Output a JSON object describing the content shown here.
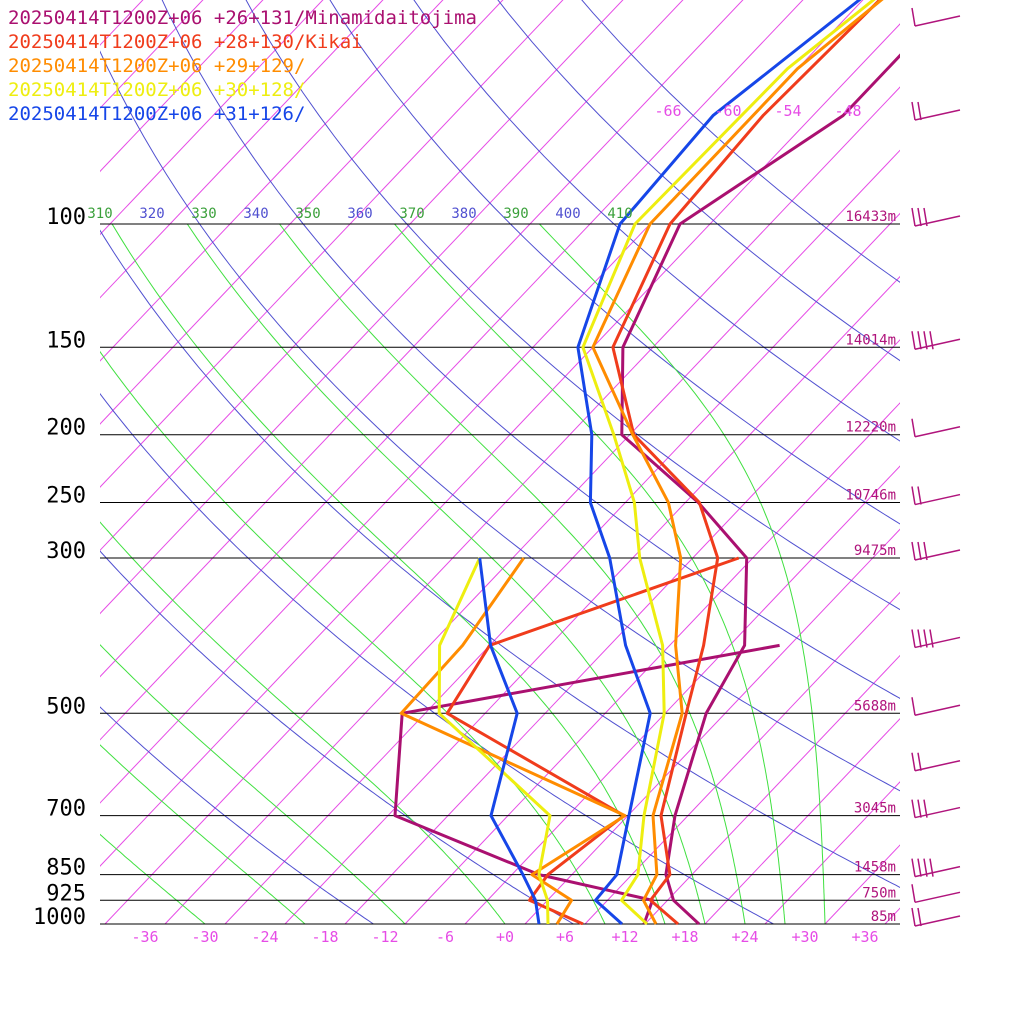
{
  "chart_data": {
    "type": "line",
    "xlabel": "",
    "ylabel": "",
    "x_ticks": [
      "-36",
      "-30",
      "-24",
      "-18",
      "-12",
      "-6",
      "+0",
      "+6",
      "+12",
      "+18",
      "+24",
      "+30",
      "+36"
    ],
    "pressure_levels": [
      {
        "p": 100,
        "label": "100",
        "height": "16433m"
      },
      {
        "p": 150,
        "label": "150",
        "height": "14014m"
      },
      {
        "p": 200,
        "label": "200",
        "height": "12220m"
      },
      {
        "p": 250,
        "label": "250",
        "height": "10746m"
      },
      {
        "p": 300,
        "label": "300",
        "height": "9475m"
      },
      {
        "p": 500,
        "label": "500",
        "height": "5688m"
      },
      {
        "p": 700,
        "label": "700",
        "height": "3045m"
      },
      {
        "p": 850,
        "label": "850",
        "height": "1458m"
      },
      {
        "p": 925,
        "label": "925",
        "height": "750m"
      },
      {
        "p": 1000,
        "label": "1000",
        "height": "85m"
      }
    ],
    "theta_labels": [
      {
        "text": "310",
        "color": "#3aa03a"
      },
      {
        "text": "320",
        "color": "#5050d0"
      },
      {
        "text": "330",
        "color": "#3aa03a"
      },
      {
        "text": "340",
        "color": "#5050d0"
      },
      {
        "text": "350",
        "color": "#3aa03a"
      },
      {
        "text": "360",
        "color": "#5050d0"
      },
      {
        "text": "370",
        "color": "#3aa03a"
      },
      {
        "text": "380",
        "color": "#5050d0"
      },
      {
        "text": "390",
        "color": "#3aa03a"
      },
      {
        "text": "400",
        "color": "#5050d0"
      },
      {
        "text": "410",
        "color": "#3aa03a"
      }
    ],
    "top_temp_labels": [
      "-66",
      "-60",
      "-54",
      "-48"
    ],
    "series": [
      {
        "name": "20250414T1200Z+06 +26+131/Minamidaitojima",
        "color": "#aa1070",
        "temperature": [
          [
            1000,
            19.4
          ],
          [
            925,
            14.6
          ],
          [
            850,
            11.4
          ],
          [
            700,
            6.7
          ],
          [
            500,
            0.1
          ],
          [
            400,
            -2.5
          ],
          [
            300,
            -10.6
          ],
          [
            250,
            -20.7
          ],
          [
            200,
            -34.8
          ],
          [
            150,
            -43
          ],
          [
            100,
            -49
          ],
          [
            70,
            -43
          ],
          [
            20,
            -43
          ]
        ],
        "dewpoint": [
          [
            1000,
            13.9
          ],
          [
            925,
            12.5
          ],
          [
            850,
            -1.3
          ],
          [
            700,
            -21.3
          ],
          [
            500,
            -30.3
          ],
          [
            400,
            1.0
          ]
        ]
      },
      {
        "name": "20250414T1200Z+06 +28+130/Kikai",
        "color": "#f03c1c",
        "temperature": [
          [
            1000,
            17.3
          ],
          [
            925,
            12.3
          ],
          [
            850,
            11.8
          ],
          [
            700,
            5.3
          ],
          [
            500,
            -1.9
          ],
          [
            400,
            -6.6
          ],
          [
            300,
            -13.5
          ],
          [
            250,
            -20.6
          ],
          [
            200,
            -33.6
          ],
          [
            150,
            -44
          ],
          [
            100,
            -50
          ],
          [
            70,
            -51
          ],
          [
            40,
            -50
          ],
          [
            20,
            -44
          ]
        ],
        "dewpoint": [
          [
            1000,
            7.8
          ],
          [
            925,
            0.2
          ],
          [
            850,
            -0.4
          ],
          [
            700,
            1.6
          ],
          [
            500,
            -25.8
          ],
          [
            400,
            -28
          ],
          [
            300,
            -11.4
          ]
        ]
      },
      {
        "name": "20250414T1200Z+06 +29+129/",
        "color": "#ff8c00",
        "temperature": [
          [
            1000,
            15.1
          ],
          [
            925,
            11.6
          ],
          [
            850,
            10.5
          ],
          [
            700,
            4.5
          ],
          [
            500,
            -2.3
          ],
          [
            400,
            -9.4
          ],
          [
            300,
            -17.2
          ],
          [
            250,
            -23.7
          ],
          [
            200,
            -33.7
          ],
          [
            150,
            -46
          ],
          [
            100,
            -52
          ],
          [
            60,
            -52
          ],
          [
            20,
            -43
          ]
        ],
        "dewpoint": [
          [
            1000,
            5.2
          ],
          [
            925,
            4.4
          ],
          [
            850,
            -2.0
          ],
          [
            700,
            1.7
          ],
          [
            500,
            -30.4
          ],
          [
            400,
            -30.7
          ],
          [
            300,
            -32.9
          ]
        ]
      },
      {
        "name": "20250414T1200Z+06 +30+128/",
        "color": "#eeee10",
        "temperature": [
          [
            1000,
            14.2
          ],
          [
            925,
            9.4
          ],
          [
            850,
            8.6
          ],
          [
            700,
            3.6
          ],
          [
            500,
            -4.1
          ],
          [
            400,
            -10.7
          ],
          [
            300,
            -21.3
          ],
          [
            250,
            -27.1
          ],
          [
            200,
            -35.6
          ],
          [
            150,
            -47
          ],
          [
            100,
            -53.5
          ],
          [
            60,
            -53
          ],
          [
            20,
            -43
          ]
        ],
        "dewpoint": [
          [
            1000,
            4.3
          ],
          [
            925,
            2.0
          ],
          [
            850,
            -1.3
          ],
          [
            700,
            -5.8
          ],
          [
            500,
            -26.6
          ],
          [
            400,
            -33.0
          ],
          [
            300,
            -37.3
          ]
        ]
      },
      {
        "name": "20250414T1200Z+06 +31+126/",
        "color": "#1646e8",
        "temperature": [
          [
            1000,
            11.7
          ],
          [
            925,
            6.8
          ],
          [
            850,
            6.5
          ],
          [
            700,
            2.1
          ],
          [
            500,
            -5.5
          ],
          [
            400,
            -14.4
          ],
          [
            300,
            -24.3
          ],
          [
            250,
            -31.5
          ],
          [
            200,
            -37.8
          ],
          [
            150,
            -47.5
          ],
          [
            100,
            -55
          ],
          [
            70,
            -56
          ],
          [
            20,
            -44
          ]
        ],
        "dewpoint": [
          [
            1000,
            3.4
          ],
          [
            925,
            0.8
          ],
          [
            850,
            -2.9
          ],
          [
            700,
            -11.7
          ],
          [
            500,
            -18.8
          ],
          [
            400,
            -27.9
          ],
          [
            300,
            -37.3
          ]
        ]
      }
    ],
    "wind_barb_levels": [
      20,
      40,
      100,
      150,
      200,
      250,
      300,
      400,
      500,
      600,
      700,
      850,
      925,
      1000
    ],
    "x_range": [
      -40,
      40
    ],
    "y_range": [
      100,
      1000
    ],
    "y_scale": "log-pressure",
    "grid": true
  },
  "colors": {
    "isotherm": "#e64ce6",
    "dry_adiabat": "#5050d0",
    "moist_adiabat": "#40e040",
    "isobar": "#000000",
    "barb": "#b0147c"
  }
}
